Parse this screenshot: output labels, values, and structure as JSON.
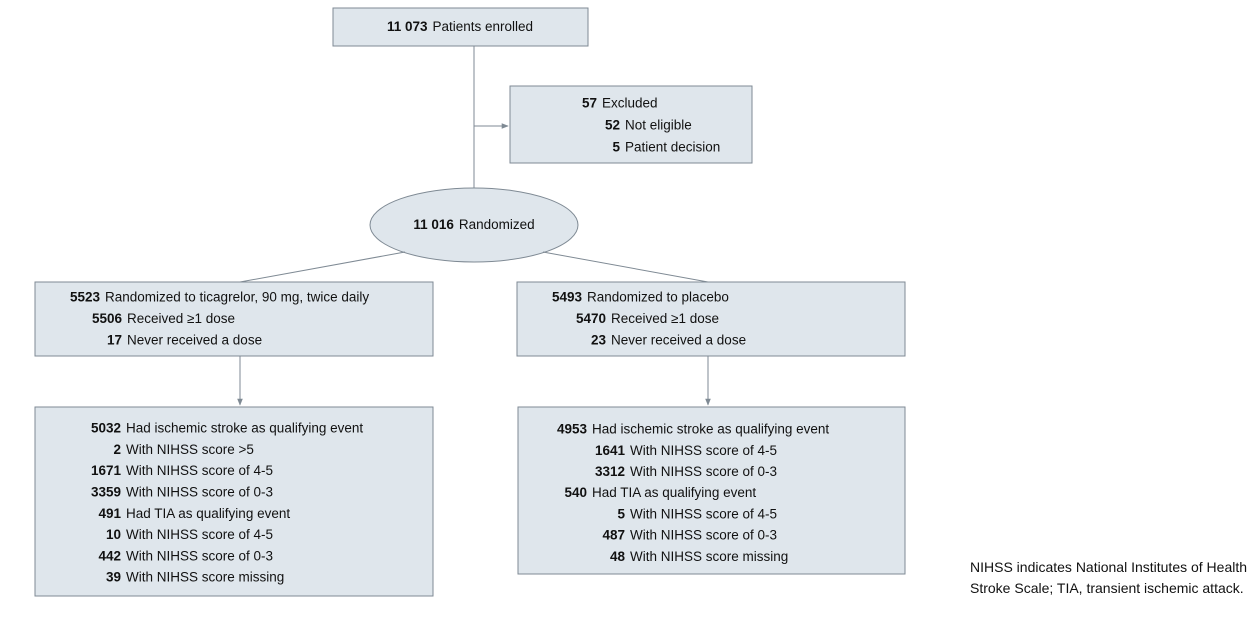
{
  "nodes": [
    {
      "lines": [
        {
          "count": "11 073",
          "text": "Patients enrolled"
        }
      ]
    },
    {
      "lines": [
        {
          "count": "57",
          "text": "Excluded"
        },
        {
          "count": "52",
          "text": "Not eligible"
        },
        {
          "count": "5",
          "text": "Patient decision"
        }
      ]
    },
    {
      "lines": [
        {
          "count": "11 016",
          "text": "Randomized"
        }
      ]
    },
    {
      "lines": [
        {
          "count": "5523",
          "text": "Randomized to ticagrelor, 90 mg, twice daily"
        },
        {
          "count": "5506",
          "text": "Received ≥1 dose"
        },
        {
          "count": "17",
          "text": "Never received a dose"
        }
      ]
    },
    {
      "lines": [
        {
          "count": "5493",
          "text": "Randomized to placebo"
        },
        {
          "count": "5470",
          "text": "Received ≥1 dose"
        },
        {
          "count": "23",
          "text": "Never received a dose"
        }
      ]
    },
    {
      "lines": [
        {
          "count": "5032",
          "text": "Had ischemic stroke as qualifying event"
        },
        {
          "count": "2",
          "text": "With NIHSS score >5"
        },
        {
          "count": "1671",
          "text": "With NIHSS score of 4-5"
        },
        {
          "count": "3359",
          "text": "With NIHSS score of 0-3"
        },
        {
          "count": "491",
          "text": "Had TIA as qualifying event"
        },
        {
          "count": "10",
          "text": "With NIHSS score of 4-5"
        },
        {
          "count": "442",
          "text": "With NIHSS score of 0-3"
        },
        {
          "count": "39",
          "text": "With NIHSS score missing"
        }
      ]
    },
    {
      "lines": [
        {
          "count": "4953",
          "text": "Had ischemic stroke as qualifying event"
        },
        {
          "count": "1641",
          "text": "With NIHSS score of 4-5"
        },
        {
          "count": "3312",
          "text": "With NIHSS score of 0-3"
        },
        {
          "count": "540",
          "text": "Had TIA as qualifying event"
        },
        {
          "count": "5",
          "text": "With NIHSS score of 4-5"
        },
        {
          "count": "487",
          "text": "With NIHSS score of 0-3"
        },
        {
          "count": "48",
          "text": "With NIHSS score missing"
        }
      ]
    }
  ],
  "footnote": "NIHSS indicates National Institutes of Health Stroke Scale; TIA, transient ischemic attack."
}
